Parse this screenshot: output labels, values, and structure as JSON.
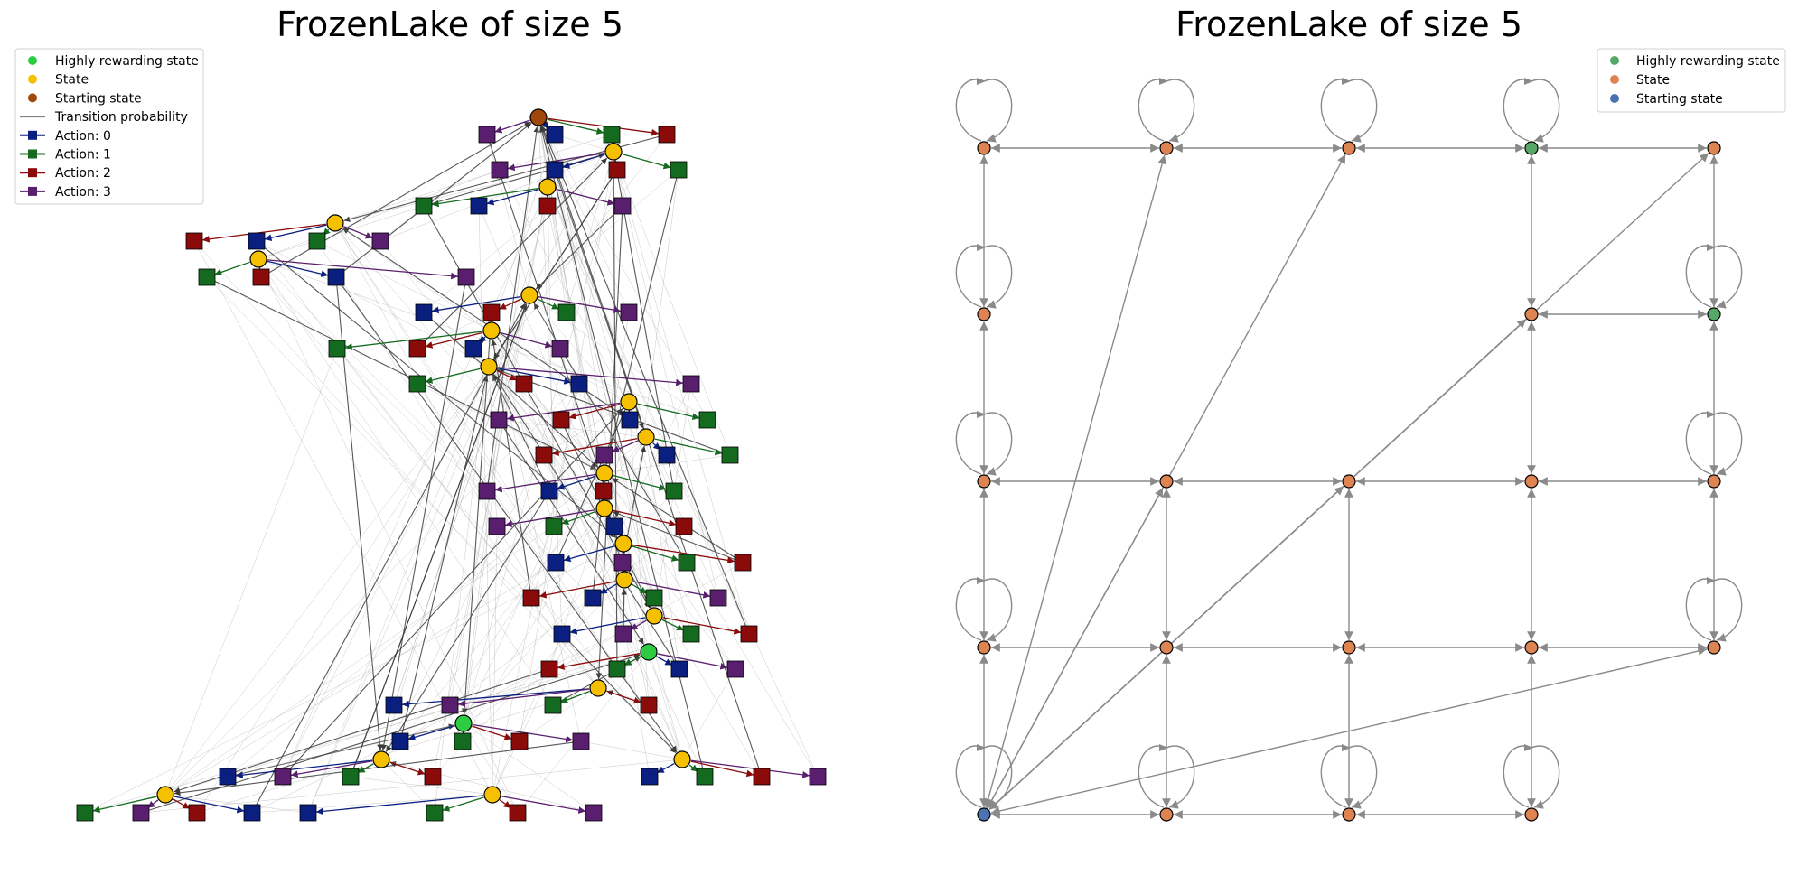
{
  "left_panel": {
    "title": "FrozenLake of size 5",
    "legend": [
      {
        "label": "Highly rewarding state",
        "kind": "dot",
        "color": "#2ecc40"
      },
      {
        "label": "State",
        "kind": "dot",
        "color": "#f5c000"
      },
      {
        "label": "Starting state",
        "kind": "dot",
        "color": "#a0480a"
      },
      {
        "label": "Transition probability",
        "kind": "line",
        "color": "#808080"
      },
      {
        "label": "Action: 0",
        "kind": "square-line",
        "color": "#0b1f80"
      },
      {
        "label": "Action: 1",
        "kind": "square-line",
        "color": "#146a1e"
      },
      {
        "label": "Action: 2",
        "kind": "square-line",
        "color": "#8b0a0a"
      },
      {
        "label": "Action: 3",
        "kind": "square-line",
        "color": "#5a1e6e"
      }
    ]
  },
  "right_panel": {
    "title": "FrozenLake of size 5",
    "legend": [
      {
        "label": "Highly rewarding state",
        "color": "#55a868"
      },
      {
        "label": "State",
        "color": "#dd8452"
      },
      {
        "label": "Starting state",
        "color": "#4c72b0"
      }
    ],
    "grid_size": 5,
    "states": [
      {
        "row": 0,
        "col": 0,
        "type": "state",
        "self_loop": true
      },
      {
        "row": 0,
        "col": 1,
        "type": "state",
        "self_loop": true
      },
      {
        "row": 0,
        "col": 2,
        "type": "state",
        "self_loop": true
      },
      {
        "row": 0,
        "col": 3,
        "type": "reward",
        "self_loop": true
      },
      {
        "row": 0,
        "col": 4,
        "type": "state",
        "self_loop": false
      },
      {
        "row": 1,
        "col": 0,
        "type": "state",
        "self_loop": true
      },
      {
        "row": 1,
        "col": 3,
        "type": "state",
        "self_loop": false
      },
      {
        "row": 1,
        "col": 4,
        "type": "reward",
        "self_loop": true
      },
      {
        "row": 2,
        "col": 0,
        "type": "state",
        "self_loop": true
      },
      {
        "row": 2,
        "col": 1,
        "type": "state",
        "self_loop": false
      },
      {
        "row": 2,
        "col": 2,
        "type": "state",
        "self_loop": false
      },
      {
        "row": 2,
        "col": 3,
        "type": "state",
        "self_loop": false
      },
      {
        "row": 2,
        "col": 4,
        "type": "state",
        "self_loop": true
      },
      {
        "row": 3,
        "col": 0,
        "type": "state",
        "self_loop": true
      },
      {
        "row": 3,
        "col": 1,
        "type": "state",
        "self_loop": false
      },
      {
        "row": 3,
        "col": 2,
        "type": "state",
        "self_loop": false
      },
      {
        "row": 3,
        "col": 3,
        "type": "state",
        "self_loop": false
      },
      {
        "row": 3,
        "col": 4,
        "type": "state",
        "self_loop": true
      },
      {
        "row": 4,
        "col": 0,
        "type": "start",
        "self_loop": true
      },
      {
        "row": 4,
        "col": 1,
        "type": "state",
        "self_loop": true
      },
      {
        "row": 4,
        "col": 2,
        "type": "state",
        "self_loop": true
      },
      {
        "row": 4,
        "col": 3,
        "type": "state",
        "self_loop": true
      }
    ],
    "edges": [
      [
        [
          0,
          0
        ],
        [
          0,
          1
        ]
      ],
      [
        [
          0,
          1
        ],
        [
          0,
          2
        ]
      ],
      [
        [
          0,
          2
        ],
        [
          0,
          3
        ]
      ],
      [
        [
          0,
          3
        ],
        [
          0,
          4
        ]
      ],
      [
        [
          0,
          0
        ],
        [
          1,
          0
        ]
      ],
      [
        [
          1,
          0
        ],
        [
          2,
          0
        ]
      ],
      [
        [
          2,
          0
        ],
        [
          3,
          0
        ]
      ],
      [
        [
          3,
          0
        ],
        [
          4,
          0
        ]
      ],
      [
        [
          0,
          3
        ],
        [
          1,
          3
        ]
      ],
      [
        [
          1,
          3
        ],
        [
          2,
          3
        ]
      ],
      [
        [
          2,
          3
        ],
        [
          3,
          3
        ]
      ],
      [
        [
          3,
          3
        ],
        [
          4,
          3
        ]
      ],
      [
        [
          0,
          4
        ],
        [
          1,
          4
        ]
      ],
      [
        [
          1,
          4
        ],
        [
          2,
          4
        ]
      ],
      [
        [
          2,
          4
        ],
        [
          3,
          4
        ]
      ],
      [
        [
          1,
          3
        ],
        [
          1,
          4
        ]
      ],
      [
        [
          2,
          0
        ],
        [
          2,
          1
        ]
      ],
      [
        [
          2,
          1
        ],
        [
          2,
          2
        ]
      ],
      [
        [
          2,
          2
        ],
        [
          2,
          3
        ]
      ],
      [
        [
          2,
          3
        ],
        [
          2,
          4
        ]
      ],
      [
        [
          3,
          0
        ],
        [
          3,
          1
        ]
      ],
      [
        [
          3,
          1
        ],
        [
          3,
          2
        ]
      ],
      [
        [
          3,
          2
        ],
        [
          3,
          3
        ]
      ],
      [
        [
          3,
          3
        ],
        [
          3,
          4
        ]
      ],
      [
        [
          2,
          1
        ],
        [
          3,
          1
        ]
      ],
      [
        [
          3,
          1
        ],
        [
          4,
          1
        ]
      ],
      [
        [
          2,
          2
        ],
        [
          3,
          2
        ]
      ],
      [
        [
          3,
          2
        ],
        [
          4,
          2
        ]
      ],
      [
        [
          4,
          0
        ],
        [
          4,
          1
        ]
      ],
      [
        [
          4,
          1
        ],
        [
          4,
          2
        ]
      ],
      [
        [
          4,
          2
        ],
        [
          4,
          3
        ]
      ],
      [
        [
          4,
          0
        ],
        [
          0,
          1
        ]
      ],
      [
        [
          4,
          0
        ],
        [
          0,
          2
        ]
      ],
      [
        [
          4,
          0
        ],
        [
          0,
          4
        ]
      ],
      [
        [
          4,
          0
        ],
        [
          2,
          1
        ]
      ],
      [
        [
          4,
          0
        ],
        [
          2,
          2
        ]
      ],
      [
        [
          4,
          0
        ],
        [
          1,
          3
        ]
      ],
      [
        [
          4,
          0
        ],
        [
          3,
          4
        ]
      ]
    ]
  },
  "left_graph": {
    "state_nodes": [
      {
        "type": "start"
      },
      {
        "type": "state"
      },
      {
        "type": "state"
      },
      {
        "type": "state"
      },
      {
        "type": "state"
      },
      {
        "type": "state"
      },
      {
        "type": "state"
      },
      {
        "type": "state"
      },
      {
        "type": "state"
      },
      {
        "type": "state"
      },
      {
        "type": "state"
      },
      {
        "type": "state"
      },
      {
        "type": "state"
      },
      {
        "type": "state"
      },
      {
        "type": "state"
      },
      {
        "type": "reward"
      },
      {
        "type": "state"
      },
      {
        "type": "reward"
      },
      {
        "type": "state"
      },
      {
        "type": "state"
      },
      {
        "type": "state"
      },
      {
        "type": "state"
      }
    ]
  }
}
